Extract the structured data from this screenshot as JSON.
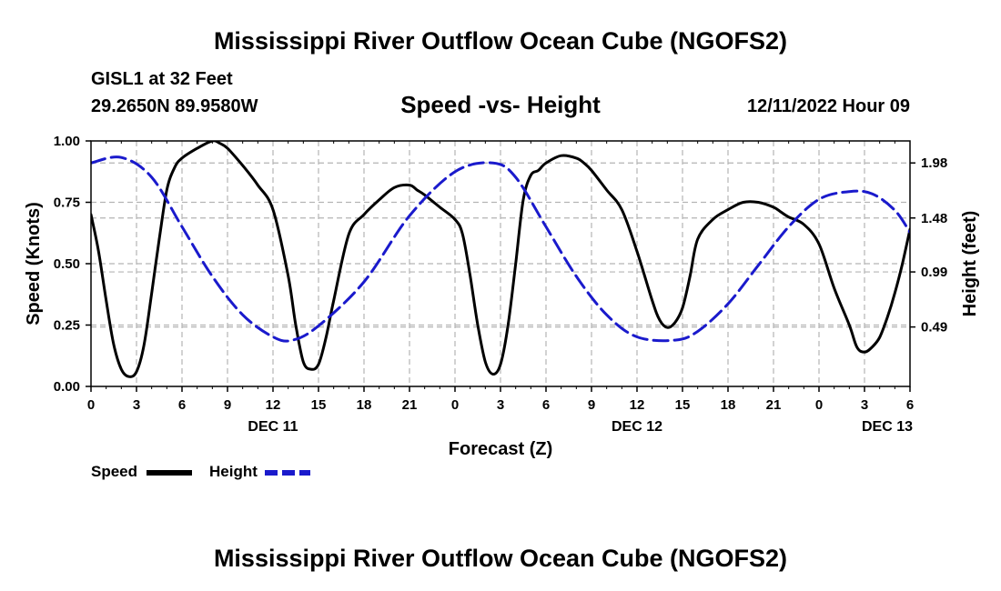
{
  "header": {
    "title": "Mississippi River Outflow Ocean Cube (NGOFS2)",
    "station": "GISL1 at 32 Feet",
    "coords": "29.2650N  89.9580W",
    "subtitle": "Speed -vs- Height",
    "datetime": "12/11/2022 Hour 09"
  },
  "footer": {
    "title": "Mississippi River Outflow Ocean Cube (NGOFS2)"
  },
  "legend": {
    "speed_label": "Speed",
    "height_label": "Height"
  },
  "colors": {
    "speed": "#000000",
    "height": "#1a1acc",
    "grid": "#b4b4b4"
  },
  "chart_data": {
    "type": "line",
    "title": "Speed -vs- Height",
    "xlabel": "Forecast (Z)",
    "ylabel": "Speed (Knots)",
    "y2label": "Height (feet)",
    "xlim": [
      0,
      54
    ],
    "ylim": [
      0,
      1
    ],
    "y2lim": [
      -0.05,
      2.18
    ],
    "x_ticks": [
      0,
      3,
      6,
      9,
      12,
      15,
      18,
      21,
      24,
      27,
      30,
      33,
      36,
      39,
      42,
      45,
      48,
      51,
      54
    ],
    "x_tick_labels": [
      "0",
      "3",
      "6",
      "9",
      "12",
      "15",
      "18",
      "21",
      "0",
      "3",
      "6",
      "9",
      "12",
      "15",
      "18",
      "21",
      "0",
      "3",
      "6"
    ],
    "y_ticks": [
      0,
      0.25,
      0.5,
      0.75,
      1.0
    ],
    "y_tick_labels": [
      "0.00",
      "0.25",
      "0.50",
      "0.75",
      "1.00"
    ],
    "y2_ticks": [
      0.49,
      0.99,
      1.48,
      1.98
    ],
    "y2_tick_labels": [
      "0.49",
      "0.99",
      "1.48",
      "1.98"
    ],
    "date_labels": [
      {
        "x": 12,
        "label": "DEC 11"
      },
      {
        "x": 36,
        "label": "DEC 12"
      },
      {
        "x": 52.5,
        "label": "DEC 13"
      }
    ],
    "grid": true,
    "series": [
      {
        "name": "Speed",
        "axis": "left",
        "x": [
          0,
          0.5,
          1,
          1.5,
          2,
          2.5,
          3,
          3.5,
          4,
          4.5,
          5,
          5.5,
          6,
          7,
          8,
          8.5,
          9,
          10,
          11,
          12,
          13,
          13.5,
          14,
          14.5,
          15,
          15.5,
          16,
          17,
          18,
          19,
          20,
          21,
          21.5,
          22,
          23,
          24,
          24.5,
          25,
          25.5,
          26,
          26.5,
          27,
          27.5,
          28,
          28.5,
          29,
          29.5,
          30,
          31,
          32,
          32.5,
          33,
          34,
          35,
          36,
          37,
          37.5,
          38,
          38.5,
          39,
          39.5,
          40,
          41,
          42,
          43,
          44,
          45,
          45.5,
          46,
          47,
          48,
          49,
          50,
          50.5,
          51,
          51.5,
          52,
          52.5,
          53,
          53.5,
          54
        ],
        "values": [
          0.7,
          0.55,
          0.35,
          0.17,
          0.07,
          0.04,
          0.06,
          0.17,
          0.38,
          0.6,
          0.8,
          0.89,
          0.93,
          0.97,
          1.0,
          0.99,
          0.97,
          0.9,
          0.82,
          0.72,
          0.45,
          0.25,
          0.1,
          0.07,
          0.09,
          0.2,
          0.35,
          0.62,
          0.7,
          0.76,
          0.81,
          0.82,
          0.8,
          0.78,
          0.73,
          0.68,
          0.62,
          0.45,
          0.25,
          0.1,
          0.05,
          0.09,
          0.25,
          0.5,
          0.76,
          0.86,
          0.88,
          0.91,
          0.94,
          0.93,
          0.91,
          0.88,
          0.8,
          0.72,
          0.55,
          0.35,
          0.27,
          0.24,
          0.26,
          0.32,
          0.45,
          0.6,
          0.68,
          0.72,
          0.75,
          0.75,
          0.73,
          0.71,
          0.69,
          0.66,
          0.58,
          0.4,
          0.25,
          0.16,
          0.14,
          0.16,
          0.2,
          0.28,
          0.38,
          0.5,
          0.64
        ]
      },
      {
        "name": "Height",
        "axis": "right",
        "x": [
          0,
          2,
          4,
          6,
          8,
          10,
          12,
          13.3,
          15,
          18,
          21,
          24,
          26.5,
          28,
          30,
          32,
          34,
          36,
          38.5,
          40,
          42,
          44,
          46,
          48,
          50,
          51.5,
          53,
          54
        ],
        "values": [
          1.98,
          2.03,
          1.85,
          1.4,
          0.95,
          0.6,
          0.4,
          0.37,
          0.5,
          0.9,
          1.5,
          1.9,
          1.98,
          1.85,
          1.4,
          0.95,
          0.6,
          0.4,
          0.37,
          0.45,
          0.7,
          1.05,
          1.4,
          1.65,
          1.72,
          1.7,
          1.55,
          1.35
        ]
      }
    ]
  }
}
